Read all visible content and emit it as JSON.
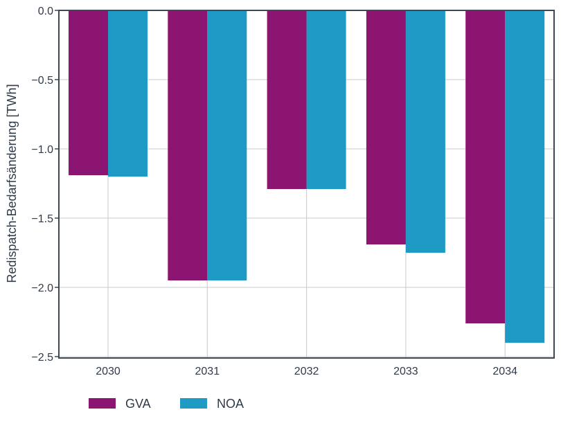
{
  "chart_data": {
    "type": "bar",
    "title": "",
    "xlabel": "",
    "ylabel": "Redispatch-Bedarfsänderung [TWh]",
    "categories": [
      "2030",
      "2031",
      "2032",
      "2033",
      "2034"
    ],
    "series": [
      {
        "name": "GVA",
        "color": "#8b1570",
        "values": [
          -1.19,
          -1.95,
          -1.29,
          -1.69,
          -2.26
        ]
      },
      {
        "name": "NOA",
        "color": "#1e9ac5",
        "values": [
          -1.2,
          -1.95,
          -1.29,
          -1.75,
          -2.4
        ]
      }
    ],
    "ylim": [
      -2.5,
      0.0
    ],
    "yticks": [
      0.0,
      -0.5,
      -1.0,
      -1.5,
      -2.0,
      -2.5
    ],
    "ytick_labels": [
      "0.0",
      "−0.5",
      "−1.0",
      "−1.5",
      "−2.0",
      "−2.5"
    ],
    "grid": true,
    "legend_position": "bottom-left",
    "frame_color": "#3d4652",
    "grid_color": "#c8c8c8",
    "text_color": "#2f3a48"
  }
}
